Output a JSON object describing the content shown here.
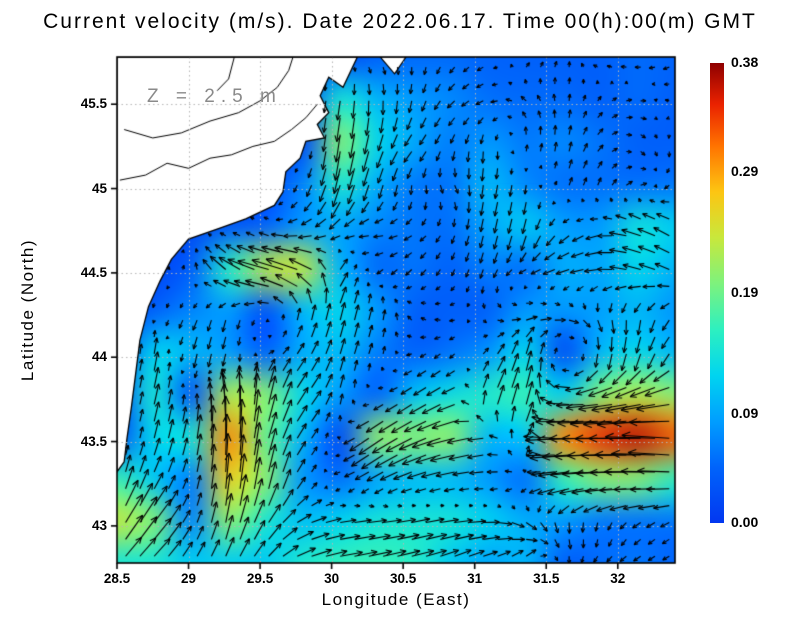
{
  "title": "Current velocity (m/s). Date 2022.06.17. Time 00(h):00(m) GMT",
  "annotation": {
    "text": "Z = 2.5 m",
    "color": "#8a8a8a"
  },
  "axes": {
    "x": {
      "label": "Longitude (East)",
      "range": [
        28.5,
        32.4
      ],
      "ticks": [
        {
          "value": 28.5,
          "label": "28.5"
        },
        {
          "value": 29,
          "label": "29"
        },
        {
          "value": 29.5,
          "label": "29.5"
        },
        {
          "value": 30,
          "label": "30"
        },
        {
          "value": 30.5,
          "label": "30.5"
        },
        {
          "value": 31,
          "label": "31"
        },
        {
          "value": 31.5,
          "label": "31.5"
        },
        {
          "value": 32,
          "label": "32"
        }
      ]
    },
    "y": {
      "label": "Latitude (North)",
      "range": [
        42.78,
        45.78
      ],
      "ticks": [
        {
          "value": 43,
          "label": "43"
        },
        {
          "value": 43.5,
          "label": "43.5"
        },
        {
          "value": 44,
          "label": "44"
        },
        {
          "value": 44.5,
          "label": "44.5"
        },
        {
          "value": 45,
          "label": "45"
        },
        {
          "value": 45.5,
          "label": "45.5"
        }
      ]
    }
  },
  "colorbar": {
    "min": 0,
    "max": 0.38,
    "units": "m/s",
    "ticks": [
      {
        "value": 0.38,
        "label": "0.38"
      },
      {
        "value": 0.29,
        "label": "0.29"
      },
      {
        "value": 0.19,
        "label": "0.19"
      },
      {
        "value": 0.09,
        "label": "0.09"
      },
      {
        "value": 0.0,
        "label": "0.00"
      }
    ],
    "stops": [
      [
        0.0,
        "#0237f0"
      ],
      [
        0.12,
        "#0063fb"
      ],
      [
        0.22,
        "#009dff"
      ],
      [
        0.32,
        "#00d4f0"
      ],
      [
        0.42,
        "#2df0c0"
      ],
      [
        0.52,
        "#7df27d"
      ],
      [
        0.62,
        "#c8e83c"
      ],
      [
        0.72,
        "#fdc512"
      ],
      [
        0.82,
        "#ff7300"
      ],
      [
        0.91,
        "#ea2200"
      ],
      [
        1.0,
        "#8e0000"
      ]
    ]
  },
  "chart_data": {
    "type": "vector_field_map",
    "units": "m/s",
    "grid": {
      "lon_start": 28.5,
      "lon_step": 0.26,
      "ncols": 16,
      "lat_start": 45.75,
      "lat_step": -0.25,
      "nrows": 13
    },
    "u": [
      [
        null,
        null,
        null,
        null,
        null,
        null,
        null,
        0.02,
        0.0,
        -0.03,
        -0.04,
        0.03,
        0.01,
        -0.04,
        -0.05,
        -0.04
      ],
      [
        null,
        null,
        null,
        null,
        null,
        null,
        -0.02,
        0.0,
        -0.02,
        -0.05,
        -0.05,
        -0.04,
        0.0,
        0.03,
        0.05,
        -0.04
      ],
      [
        null,
        null,
        null,
        null,
        null,
        null,
        -0.03,
        -0.04,
        -0.06,
        -0.02,
        0.0,
        0.01,
        0.01,
        0.04,
        0.03,
        0.0
      ],
      [
        null,
        null,
        null,
        null,
        null,
        -0.03,
        -0.05,
        -0.03,
        0.0,
        0.03,
        -0.02,
        -0.01,
        0.02,
        0.02,
        0.05,
        -0.05
      ],
      [
        null,
        null,
        null,
        -0.03,
        -0.04,
        -0.08,
        -0.08,
        -0.07,
        -0.05,
        -0.02,
        -0.02,
        -0.03,
        -0.06,
        -0.08,
        -0.13,
        -0.1
      ],
      [
        null,
        null,
        0.01,
        -0.12,
        -0.22,
        -0.22,
        0.06,
        -0.04,
        -0.04,
        -0.02,
        -0.02,
        -0.05,
        -0.09,
        -0.09,
        -0.12,
        -0.09
      ],
      [
        null,
        -0.01,
        -0.03,
        -0.02,
        -0.02,
        0.02,
        0.03,
        0.02,
        -0.03,
        -0.04,
        0.03,
        0.08,
        0.08,
        0.03,
        -0.01,
        -0.05
      ],
      [
        null,
        0.02,
        -0.02,
        -0.02,
        0.04,
        0.05,
        0.03,
        0.02,
        -0.04,
        -0.04,
        0.05,
        0.03,
        0.0,
        -0.02,
        -0.04,
        -0.06
      ],
      [
        null,
        0.03,
        0.0,
        -0.03,
        0.04,
        0.08,
        0.02,
        -0.04,
        -0.09,
        -0.12,
        0.06,
        0.04,
        -0.12,
        -0.2,
        -0.22,
        -0.2
      ],
      [
        null,
        0.03,
        0.03,
        0.0,
        0.05,
        0.06,
        -0.02,
        -0.17,
        -0.18,
        -0.2,
        -0.1,
        0.05,
        -0.3,
        -0.34,
        -0.36,
        -0.32
      ],
      [
        0.04,
        0.05,
        0.02,
        0.02,
        0.04,
        0.05,
        -0.05,
        -0.08,
        -0.1,
        -0.1,
        -0.08,
        -0.05,
        -0.16,
        -0.2,
        -0.2,
        -0.16
      ],
      [
        0.12,
        0.12,
        0.03,
        0.04,
        0.08,
        0.1,
        0.12,
        0.14,
        0.14,
        0.14,
        0.12,
        0.08,
        0.02,
        0.0,
        -0.04,
        -0.05
      ],
      [
        0.1,
        0.1,
        0.06,
        0.06,
        0.08,
        0.14,
        0.16,
        0.16,
        0.15,
        0.1,
        0.08,
        0.06,
        0.0,
        -0.04,
        -0.05,
        -0.04
      ]
    ],
    "v": [
      [
        null,
        null,
        null,
        null,
        null,
        null,
        null,
        -0.04,
        -0.05,
        -0.04,
        -0.02,
        0.03,
        0.04,
        0.01,
        0.0,
        -0.02
      ],
      [
        null,
        null,
        null,
        null,
        null,
        null,
        -0.14,
        -0.1,
        -0.08,
        -0.05,
        -0.02,
        0.03,
        0.05,
        0.03,
        0.0,
        0.01
      ],
      [
        null,
        null,
        null,
        null,
        null,
        null,
        -0.2,
        -0.12,
        -0.07,
        -0.06,
        -0.08,
        0.06,
        0.07,
        0.04,
        -0.03,
        -0.04
      ],
      [
        null,
        null,
        null,
        null,
        null,
        -0.06,
        -0.14,
        -0.09,
        -0.06,
        -0.05,
        -0.1,
        -0.07,
        0.05,
        0.05,
        0.02,
        -0.03
      ],
      [
        null,
        null,
        null,
        0.01,
        0.02,
        -0.02,
        -0.04,
        0.0,
        -0.03,
        -0.05,
        -0.09,
        -0.11,
        -0.06,
        -0.02,
        0.04,
        0.06
      ],
      [
        null,
        null,
        0.04,
        0.1,
        0.06,
        0.08,
        0.08,
        -0.03,
        -0.04,
        -0.04,
        -0.06,
        -0.02,
        -0.03,
        -0.01,
        0.03,
        0.04
      ],
      [
        null,
        -0.04,
        -0.06,
        -0.08,
        -0.02,
        0.1,
        0.12,
        0.08,
        0.03,
        0.0,
        -0.03,
        0.01,
        -0.01,
        -0.08,
        -0.1,
        -0.06
      ],
      [
        null,
        0.12,
        -0.1,
        -0.08,
        0.02,
        0.08,
        0.1,
        0.06,
        -0.02,
        -0.04,
        0.06,
        0.12,
        0.02,
        -0.1,
        -0.12,
        -0.08
      ],
      [
        null,
        0.14,
        0.03,
        0.22,
        0.2,
        0.1,
        0.08,
        -0.02,
        -0.06,
        -0.06,
        0.14,
        0.16,
        0.02,
        -0.03,
        -0.05,
        -0.04
      ],
      [
        null,
        0.12,
        0.14,
        0.3,
        0.18,
        0.08,
        0.0,
        -0.12,
        -0.09,
        -0.05,
        -0.02,
        0.1,
        -0.02,
        0.0,
        0.0,
        0.03
      ],
      [
        0.16,
        0.1,
        0.06,
        0.26,
        0.2,
        0.06,
        -0.02,
        -0.04,
        -0.03,
        -0.02,
        0.0,
        -0.02,
        -0.03,
        -0.02,
        0.0,
        0.0
      ],
      [
        0.2,
        0.16,
        0.06,
        0.2,
        0.12,
        0.04,
        0.02,
        0.02,
        0.03,
        0.02,
        0.0,
        -0.05,
        -0.08,
        -0.06,
        -0.04,
        -0.03
      ],
      [
        0.1,
        0.1,
        0.1,
        0.1,
        0.08,
        0.05,
        0.03,
        0.04,
        0.04,
        0.05,
        0.04,
        0.08,
        -0.04,
        -0.03,
        -0.03,
        -0.02
      ]
    ],
    "coastline": [
      [
        28.5,
        45.78
      ],
      [
        30.18,
        45.78
      ],
      [
        30.08,
        45.6
      ],
      [
        29.98,
        45.66
      ],
      [
        29.92,
        45.55
      ],
      [
        29.98,
        45.45
      ],
      [
        29.9,
        45.38
      ],
      [
        29.95,
        45.3
      ],
      [
        29.82,
        45.28
      ],
      [
        29.78,
        45.18
      ],
      [
        29.68,
        45.1
      ],
      [
        29.66,
        44.98
      ],
      [
        29.6,
        44.9
      ],
      [
        29.4,
        44.82
      ],
      [
        29.2,
        44.76
      ],
      [
        29.0,
        44.7
      ],
      [
        28.88,
        44.58
      ],
      [
        28.8,
        44.45
      ],
      [
        28.72,
        44.3
      ],
      [
        28.66,
        44.1
      ],
      [
        28.63,
        43.9
      ],
      [
        28.6,
        43.7
      ],
      [
        28.57,
        43.52
      ],
      [
        28.55,
        43.38
      ],
      [
        28.5,
        43.32
      ]
    ],
    "land_patches": [
      [
        [
          30.34,
          45.78
        ],
        [
          30.52,
          45.78
        ],
        [
          30.44,
          45.68
        ]
      ]
    ],
    "coast_details": [
      [
        [
          28.52,
          45.05
        ],
        [
          28.7,
          45.08
        ],
        [
          28.85,
          45.15
        ],
        [
          29.0,
          45.12
        ],
        [
          29.15,
          45.18
        ],
        [
          29.3,
          45.2
        ],
        [
          29.45,
          45.25
        ],
        [
          29.6,
          45.28
        ],
        [
          29.72,
          45.35
        ],
        [
          29.82,
          45.42
        ],
        [
          29.9,
          45.5
        ]
      ],
      [
        [
          28.55,
          45.35
        ],
        [
          28.75,
          45.3
        ],
        [
          28.95,
          45.33
        ],
        [
          29.15,
          45.4
        ],
        [
          29.35,
          45.45
        ],
        [
          29.5,
          45.52
        ],
        [
          29.62,
          45.6
        ],
        [
          29.7,
          45.7
        ],
        [
          29.73,
          45.78
        ]
      ],
      [
        [
          29.32,
          45.78
        ],
        [
          29.28,
          45.65
        ],
        [
          29.2,
          45.58
        ]
      ]
    ],
    "colors": {
      "land": "#ffffff",
      "coast": "#000000",
      "arrow": "#000000",
      "grid_dots": "#b5b5b5"
    }
  }
}
